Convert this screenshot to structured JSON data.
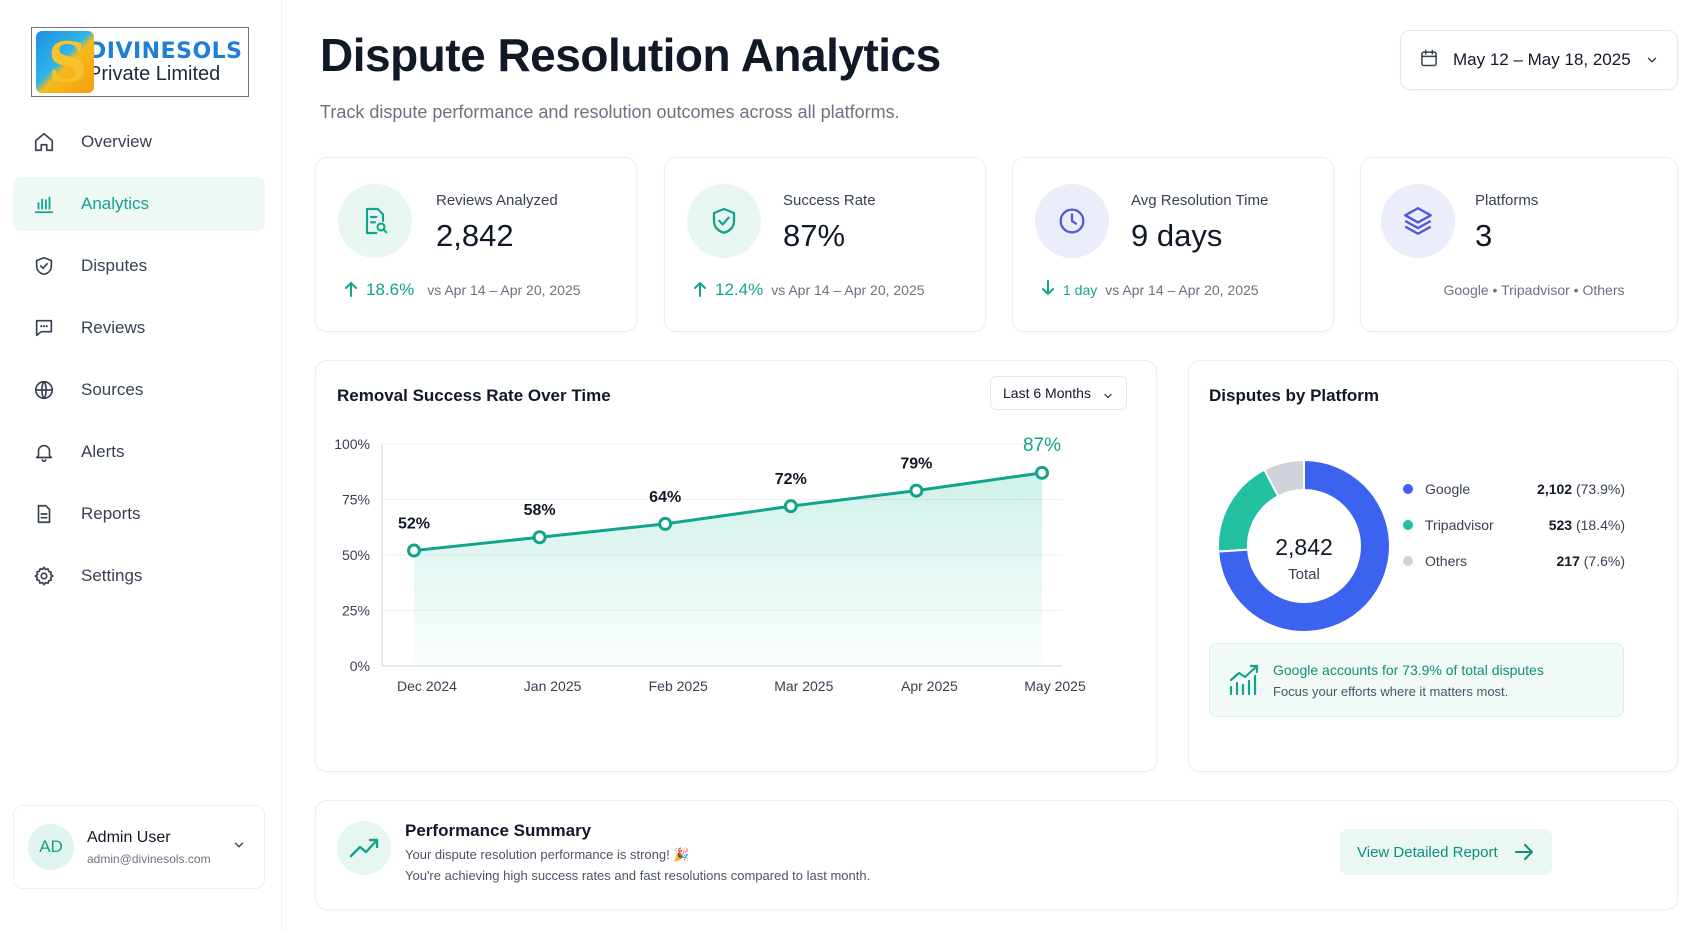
{
  "brand": {
    "name_line1": "DIVINESOLS",
    "name_line2": "Private Limited",
    "logo_letter": "S"
  },
  "sidebar": {
    "items": [
      {
        "label": "Overview",
        "icon": "home-icon",
        "active": false
      },
      {
        "label": "Analytics",
        "icon": "bar-chart-icon",
        "active": true
      },
      {
        "label": "Disputes",
        "icon": "shield-check-icon",
        "active": false
      },
      {
        "label": "Reviews",
        "icon": "message-icon",
        "active": false
      },
      {
        "label": "Sources",
        "icon": "globe-icon",
        "active": false
      },
      {
        "label": "Alerts",
        "icon": "bell-icon",
        "active": false
      },
      {
        "label": "Reports",
        "icon": "document-icon",
        "active": false
      },
      {
        "label": "Settings",
        "icon": "gear-icon",
        "active": false
      }
    ]
  },
  "user": {
    "initials": "AD",
    "name": "Admin User",
    "email": "admin@divinesols.com"
  },
  "header": {
    "title": "Dispute Resolution Analytics",
    "subtitle": "Track dispute performance and resolution outcomes across all platforms.",
    "date_range": "May 12 – May 18, 2025"
  },
  "stats": {
    "reviews": {
      "label": "Reviews Analyzed",
      "value": "2,842",
      "change": "18.6%",
      "compare": "vs Apr 14 – Apr 20, 2025",
      "direction": "up"
    },
    "success": {
      "label": "Success Rate",
      "value": "87%",
      "change": "12.4%",
      "compare": "vs Apr 14 – Apr 20, 2025",
      "direction": "up"
    },
    "resolution": {
      "label": "Avg Resolution Time",
      "value": "9 days",
      "change": "1 day",
      "compare": "vs Apr 14 – Apr 20, 2025",
      "direction": "down"
    },
    "platforms": {
      "label": "Platforms",
      "value": "3",
      "list": "Google • Tripadvisor • Others"
    }
  },
  "colors": {
    "accent": "#12a48a",
    "google": "#3b63f0",
    "tripadvisor": "#22bfa0",
    "others": "#cfd3da"
  },
  "line_chart": {
    "title": "Removal Success Rate Over Time",
    "range_label": "Last 6 Months",
    "chart_data": {
      "type": "line",
      "categories": [
        "Dec 2024",
        "Jan 2025",
        "Feb 2025",
        "Mar 2025",
        "Apr 2025",
        "May 2025"
      ],
      "values": [
        52,
        58,
        64,
        72,
        79,
        87
      ],
      "value_labels": [
        "52%",
        "58%",
        "64%",
        "72%",
        "79%",
        "87%"
      ],
      "y_ticks": [
        "0%",
        "25%",
        "50%",
        "75%",
        "100%"
      ],
      "ylim": [
        0,
        100
      ],
      "grid": true
    }
  },
  "donut": {
    "title": "Disputes by Platform",
    "center_value": "2,842",
    "center_label": "Total",
    "chart_data": {
      "type": "pie",
      "labels": [
        "Google",
        "Tripadvisor",
        "Others"
      ],
      "values": [
        2102,
        523,
        217
      ],
      "value_text": [
        "2,102",
        "523",
        "217"
      ],
      "percent_text": [
        "(73.9%)",
        "(18.4%)",
        "(7.6%)"
      ],
      "colors": [
        "#3b63f0",
        "#22bfa0",
        "#cfd3da"
      ]
    },
    "insight_title": "Google accounts for 73.9% of total disputes",
    "insight_text": "Focus your efforts where it matters most."
  },
  "summary": {
    "title": "Performance Summary",
    "line1": "Your dispute resolution performance is strong! 🎉",
    "line2": "You're achieving high success rates and fast resolutions compared to last month.",
    "button": "View Detailed Report"
  }
}
